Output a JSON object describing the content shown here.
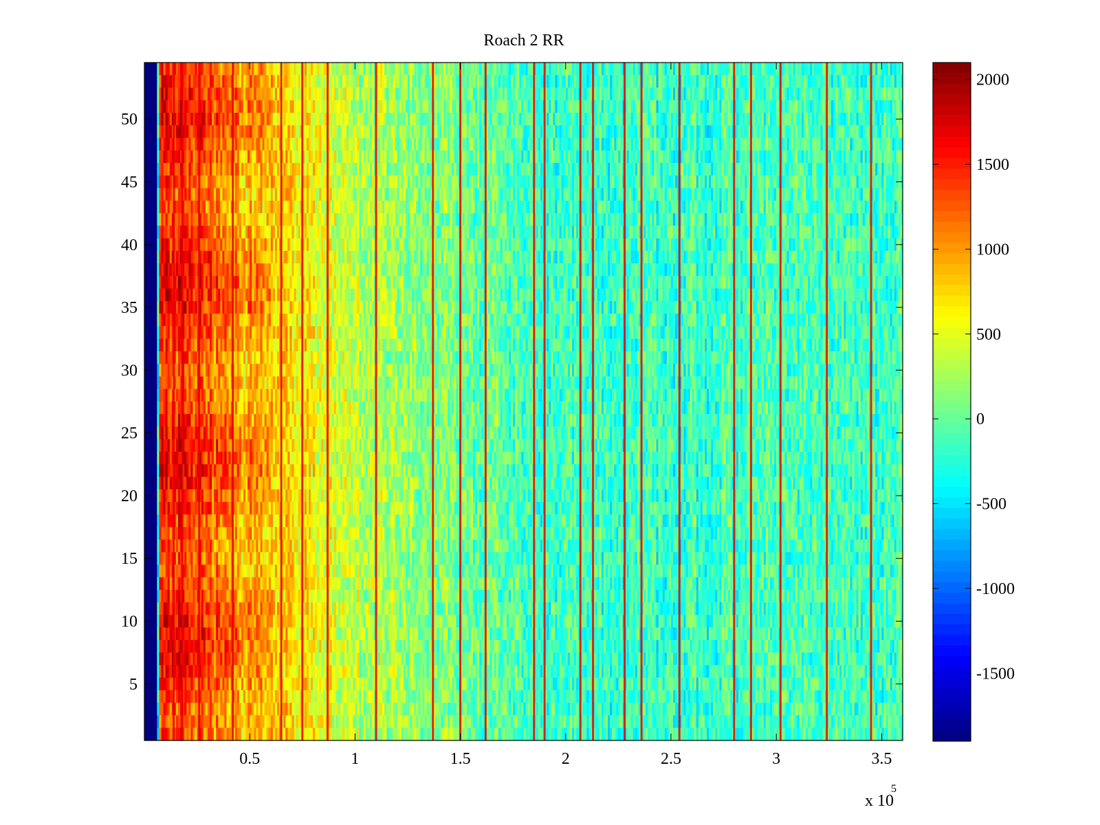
{
  "chart_data": {
    "type": "heatmap",
    "title": "Roach 2 RR",
    "xlabel": "",
    "ylabel": "",
    "x_range": [
      0,
      360000
    ],
    "y_range": [
      0.5,
      54.5
    ],
    "rows": 54,
    "x_multiplier_label": "x 10",
    "x_multiplier_exponent": "5",
    "x_ticks": [
      {
        "value": 50000,
        "label": "0.5"
      },
      {
        "value": 100000,
        "label": "1"
      },
      {
        "value": 150000,
        "label": "1.5"
      },
      {
        "value": 200000,
        "label": "2"
      },
      {
        "value": 250000,
        "label": "2.5"
      },
      {
        "value": 300000,
        "label": "3"
      },
      {
        "value": 350000,
        "label": "3.5"
      }
    ],
    "y_ticks": [
      {
        "value": 5,
        "label": "5"
      },
      {
        "value": 10,
        "label": "10"
      },
      {
        "value": 15,
        "label": "15"
      },
      {
        "value": 20,
        "label": "20"
      },
      {
        "value": 25,
        "label": "25"
      },
      {
        "value": 30,
        "label": "30"
      },
      {
        "value": 35,
        "label": "35"
      },
      {
        "value": 40,
        "label": "40"
      },
      {
        "value": 45,
        "label": "45"
      },
      {
        "value": 50,
        "label": "50"
      }
    ],
    "colormap": "jet",
    "colorbar": {
      "range": [
        -1900,
        2100
      ],
      "ticks": [
        {
          "value": 2000,
          "label": "2000"
        },
        {
          "value": 1500,
          "label": "1500"
        },
        {
          "value": 1000,
          "label": "1000"
        },
        {
          "value": 500,
          "label": "500"
        },
        {
          "value": 0,
          "label": "0"
        },
        {
          "value": -500,
          "label": "-500"
        },
        {
          "value": -1000,
          "label": "-1000"
        },
        {
          "value": -1500,
          "label": "-1500"
        }
      ]
    },
    "column_profile": {
      "x": [
        0,
        6000,
        7000,
        15000,
        30000,
        45000,
        60000,
        80000,
        100000,
        130000,
        160000,
        200000,
        250000,
        300000,
        360000
      ],
      "value": [
        -1900,
        -1900,
        1500,
        1500,
        1300,
        1000,
        850,
        600,
        350,
        150,
        0,
        -150,
        -200,
        -100,
        -150
      ]
    },
    "vertical_lines_x": [
      14000,
      18000,
      26000,
      42000,
      65000,
      75000,
      87000,
      110000,
      137000,
      150000,
      162000,
      185000,
      190000,
      207000,
      213000,
      228000,
      236000,
      254000,
      280000,
      288000,
      302000,
      324000,
      345000
    ]
  }
}
